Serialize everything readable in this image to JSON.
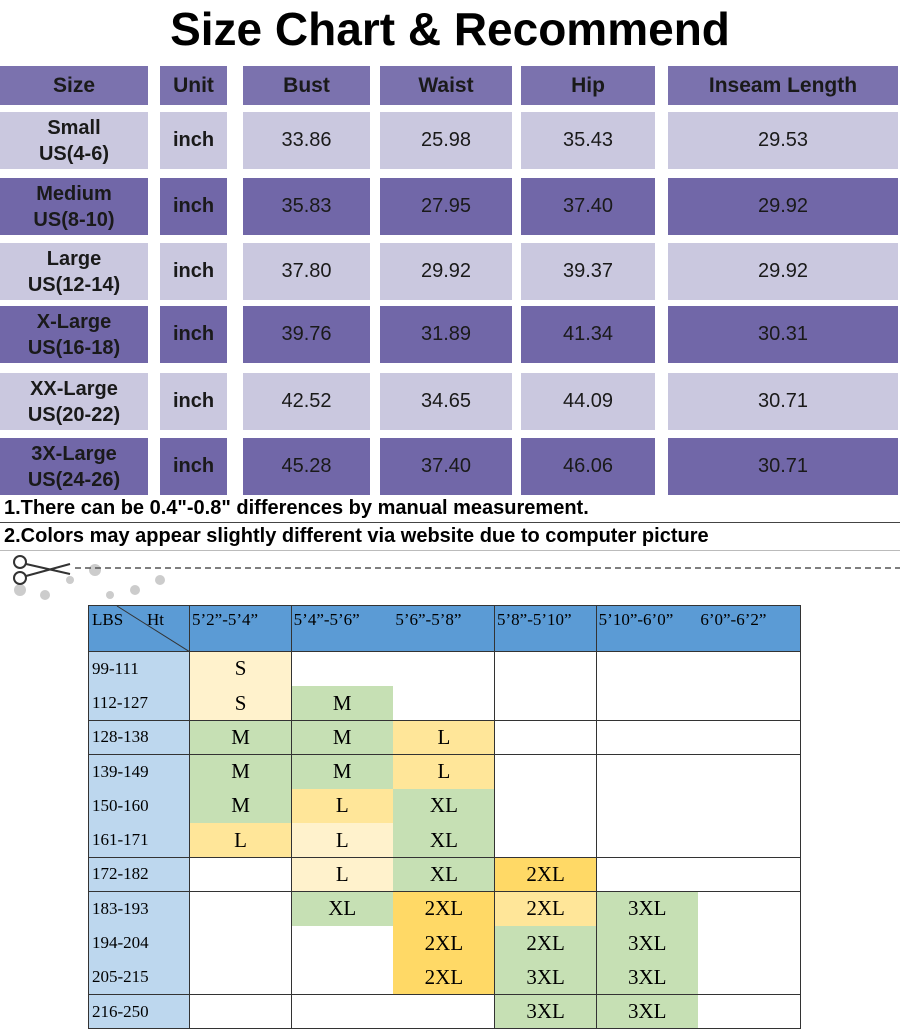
{
  "title": "Size Chart & Recommend",
  "size_chart": {
    "header": [
      "Size",
      "Unit",
      "Bust",
      "Waist",
      "Hip",
      "Inseam Length"
    ],
    "rows": [
      {
        "size": "Small",
        "us": "US(4-6)",
        "unit": "inch",
        "values": [
          "33.86",
          "25.98",
          "35.43",
          "29.53"
        ]
      },
      {
        "size": "Medium",
        "us": "US(8-10)",
        "unit": "inch",
        "values": [
          "35.83",
          "27.95",
          "37.40",
          "29.92"
        ]
      },
      {
        "size": "Large",
        "us": "US(12-14)",
        "unit": "inch",
        "values": [
          "37.80",
          "29.92",
          "39.37",
          "29.92"
        ]
      },
      {
        "size": "X-Large",
        "us": "US(16-18)",
        "unit": "inch",
        "values": [
          "39.76",
          "31.89",
          "41.34",
          "30.31"
        ]
      },
      {
        "size": "XX-Large",
        "us": "US(20-22)",
        "unit": "inch",
        "values": [
          "42.52",
          "34.65",
          "44.09",
          "30.71"
        ]
      },
      {
        "size": "3X-Large",
        "us": "US(24-26)",
        "unit": "inch",
        "values": [
          "45.28",
          "37.40",
          "46.06",
          "30.71"
        ]
      }
    ]
  },
  "notes": [
    "1.There can be 0.4\"-0.8\" differences by manual measurement.",
    "2.Colors may appear slightly different via website due to computer picture"
  ],
  "recommend": {
    "corner": {
      "row_label": "LBS",
      "col_label": "Ht"
    },
    "heights": [
      "5’2”-5’4”",
      "5’4”-5’6”",
      "5’6”-5’8”",
      "5’8”-5’10”",
      "5’10”-6’0”",
      "6’0”-6’2”"
    ],
    "rows": [
      {
        "weight": "99-111",
        "sizes": [
          "S",
          null,
          null,
          null,
          null,
          null
        ],
        "fills": [
          "#fff2cc",
          null,
          null,
          null,
          null,
          null
        ]
      },
      {
        "weight": "112-127",
        "sizes": [
          "S",
          "M",
          null,
          null,
          null,
          null
        ],
        "fills": [
          "#fff2cc",
          "#c6e0b4",
          null,
          null,
          null,
          null
        ]
      },
      {
        "weight": "128-138",
        "sizes": [
          "M",
          "M",
          "L",
          null,
          null,
          null
        ],
        "fills": [
          "#c6e0b4",
          "#c6e0b4",
          "#ffe699",
          null,
          null,
          null
        ]
      },
      {
        "weight": "139-149",
        "sizes": [
          "M",
          "M",
          "L",
          null,
          null,
          null
        ],
        "fills": [
          "#c6e0b4",
          "#c6e0b4",
          "#ffe699",
          null,
          null,
          null
        ]
      },
      {
        "weight": "150-160",
        "sizes": [
          "M",
          "L",
          "XL",
          null,
          null,
          null
        ],
        "fills": [
          "#c6e0b4",
          "#ffe699",
          "#c6e0b4",
          null,
          null,
          null
        ]
      },
      {
        "weight": "161-171",
        "sizes": [
          "L",
          "L",
          "XL",
          null,
          null,
          null
        ],
        "fills": [
          "#ffe699",
          "#fff2cc",
          "#c6e0b4",
          null,
          null,
          null
        ]
      },
      {
        "weight": "172-182",
        "sizes": [
          null,
          "L",
          "XL",
          "2XL",
          null,
          null
        ],
        "fills": [
          null,
          "#fff2cc",
          "#c6e0b4",
          "#ffd966",
          null,
          null
        ]
      },
      {
        "weight": "183-193",
        "sizes": [
          null,
          "XL",
          "2XL",
          "2XL",
          "3XL",
          null
        ],
        "fills": [
          null,
          "#c6e0b4",
          "#ffd966",
          "#ffe699",
          "#c6e0b4",
          null
        ]
      },
      {
        "weight": "194-204",
        "sizes": [
          null,
          null,
          "2XL",
          "2XL",
          "3XL",
          null
        ],
        "fills": [
          null,
          null,
          "#ffd966",
          "#c6e0b4",
          "#c6e0b4",
          null
        ]
      },
      {
        "weight": "205-215",
        "sizes": [
          null,
          null,
          "2XL",
          "3XL",
          "3XL",
          null
        ],
        "fills": [
          null,
          null,
          "#ffd966",
          "#c6e0b4",
          "#c6e0b4",
          null
        ]
      },
      {
        "weight": "216-250",
        "sizes": [
          null,
          null,
          null,
          "3XL",
          "3XL",
          null
        ],
        "fills": [
          null,
          null,
          null,
          "#c6e0b4",
          "#c6e0b4",
          null
        ]
      }
    ]
  }
}
